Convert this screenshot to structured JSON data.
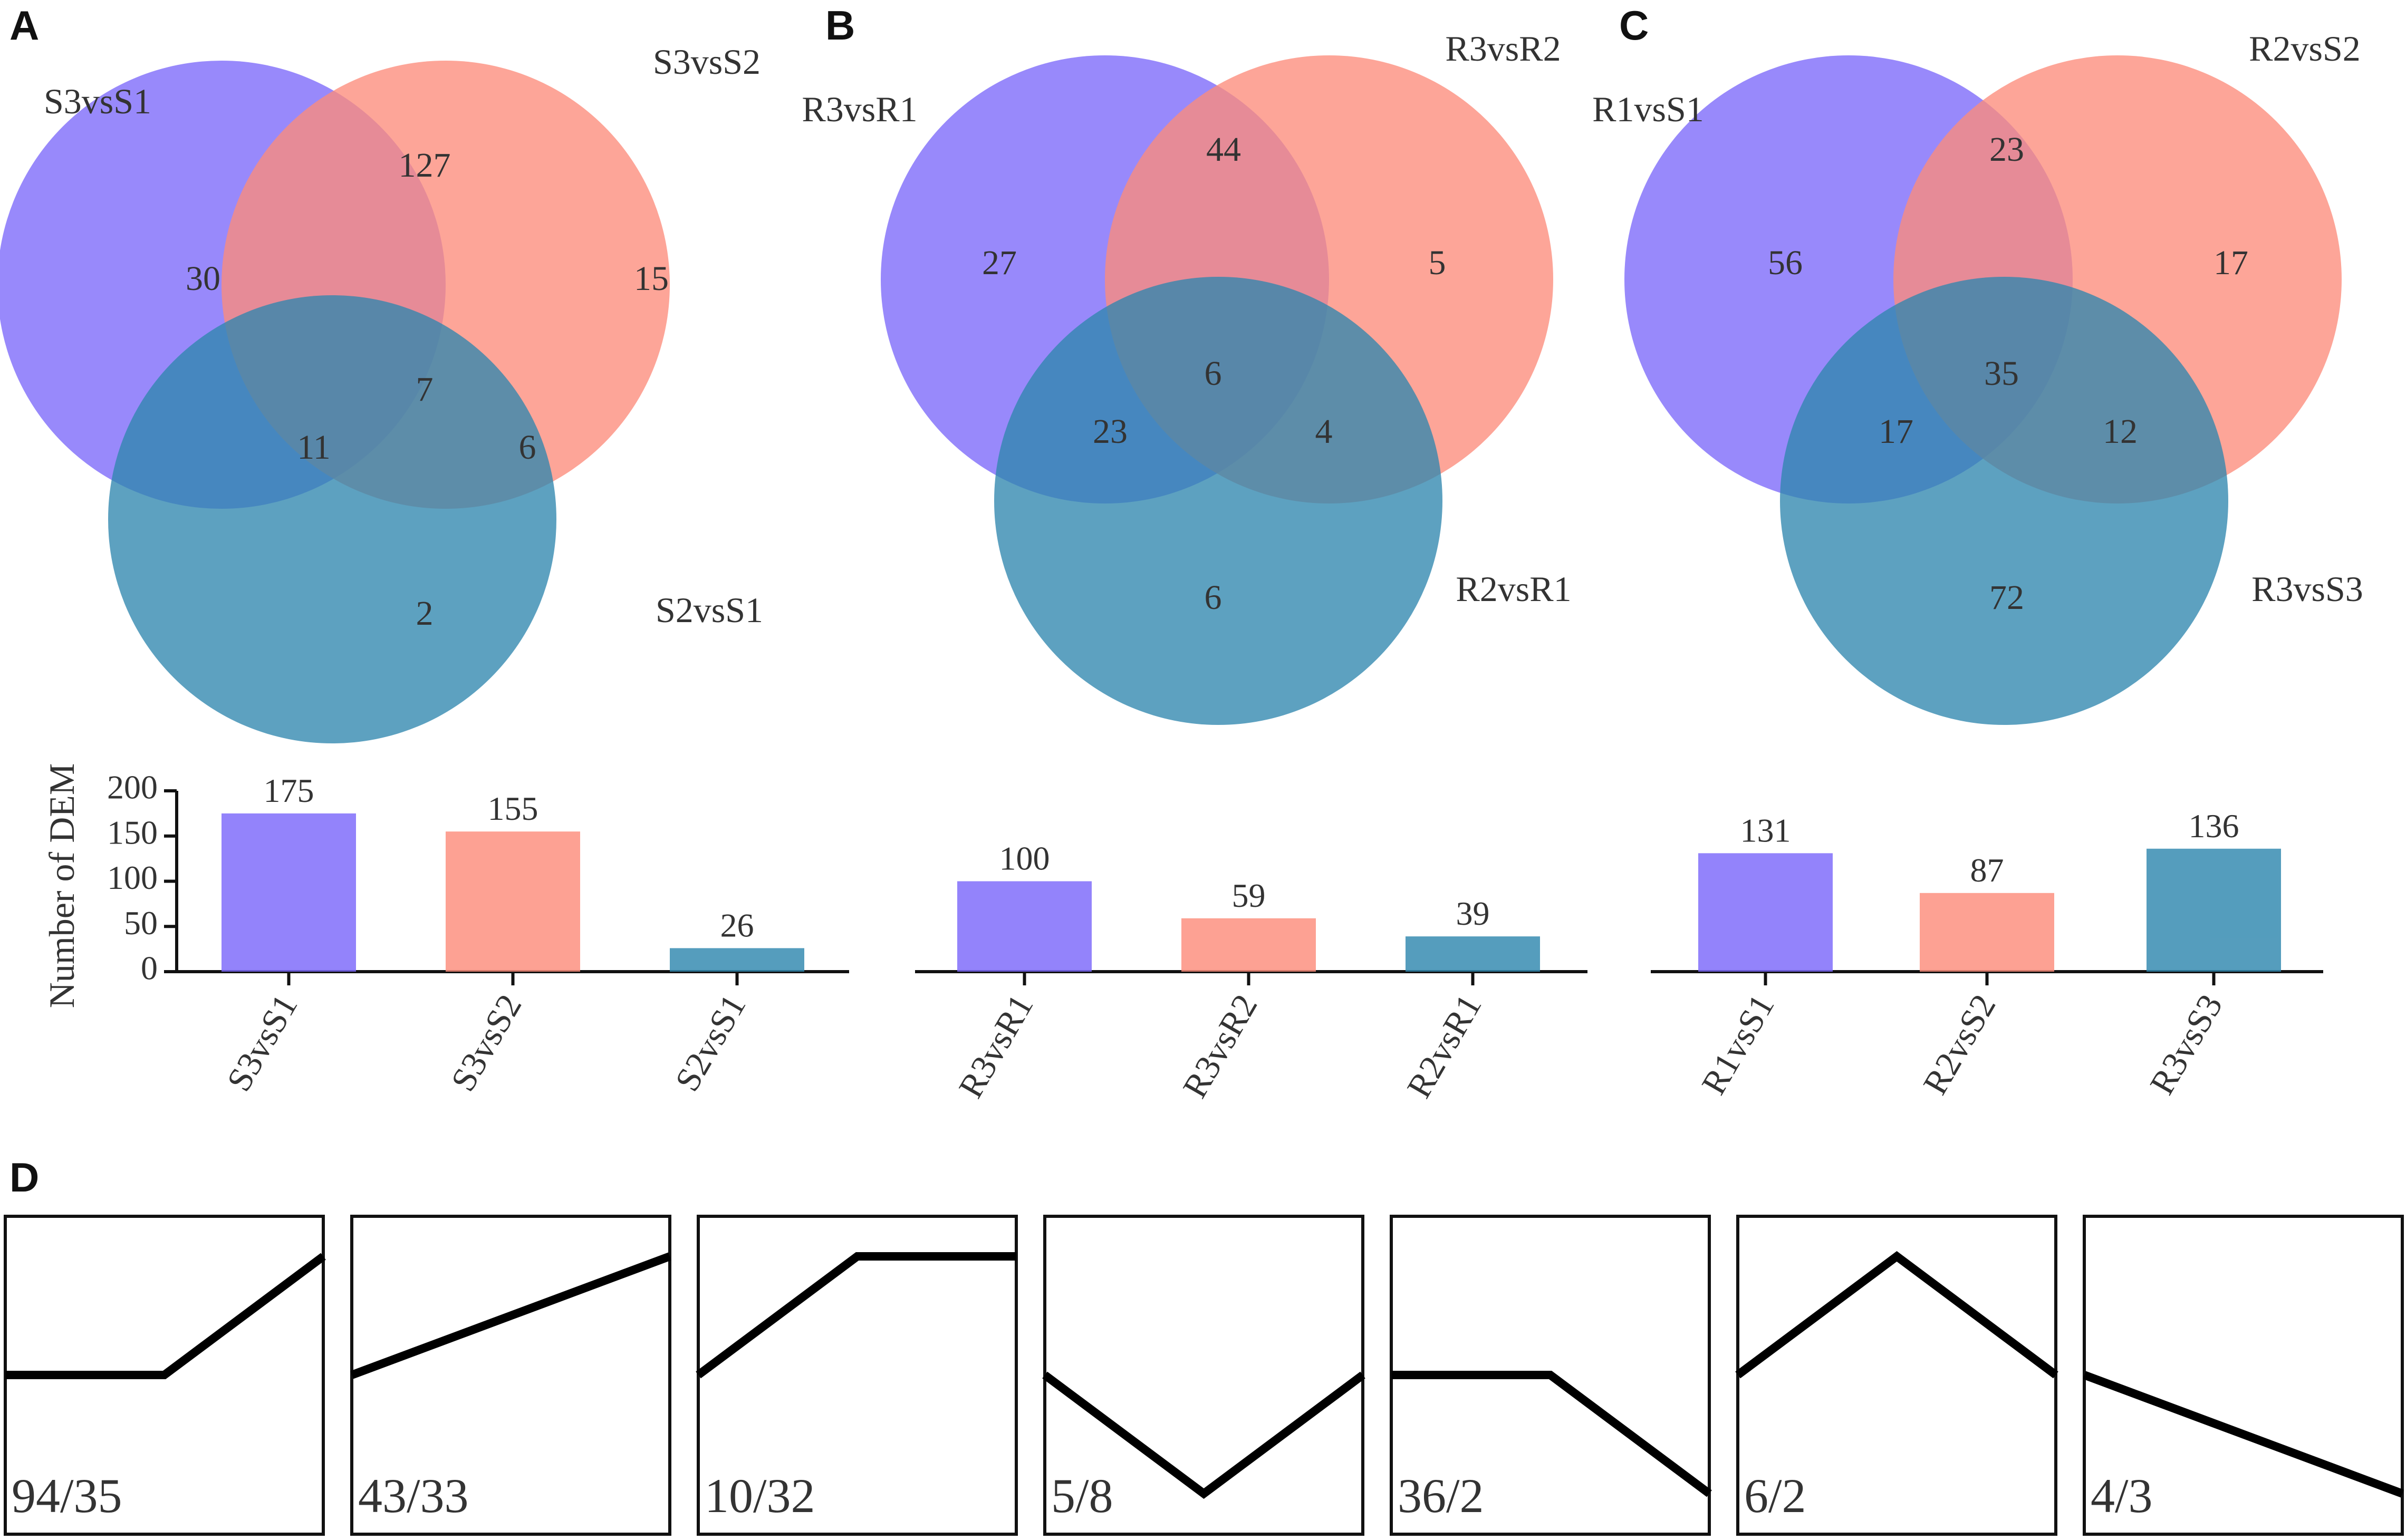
{
  "colors": {
    "purple": "#7B68FA",
    "salmon": "#FC8C7B",
    "teal": "#2F87AE",
    "text": "#333333",
    "axis": "#111111"
  },
  "chart_data": [
    {
      "panel": "A",
      "type": "venn",
      "sets": [
        "S3vsS1",
        "S3vsS2",
        "S2vsS1"
      ],
      "regions": [
        {
          "sets": [
            "S3vsS1"
          ],
          "value": 30
        },
        {
          "sets": [
            "S3vsS2"
          ],
          "value": 15
        },
        {
          "sets": [
            "S2vsS1"
          ],
          "value": 2
        },
        {
          "sets": [
            "S3vsS1",
            "S3vsS2"
          ],
          "value": 127
        },
        {
          "sets": [
            "S3vsS1",
            "S2vsS1"
          ],
          "value": 11
        },
        {
          "sets": [
            "S3vsS2",
            "S2vsS1"
          ],
          "value": 6
        },
        {
          "sets": [
            "S3vsS1",
            "S3vsS2",
            "S2vsS1"
          ],
          "value": 7
        }
      ],
      "bar": {
        "type": "bar",
        "ylabel": "Number of DEM",
        "ylim": [
          0,
          200
        ],
        "yticks": [
          0,
          50,
          100,
          150,
          200
        ],
        "categories": [
          "S3vsS1",
          "S3vsS2",
          "S2vsS1"
        ],
        "values": [
          175,
          155,
          26
        ]
      }
    },
    {
      "panel": "B",
      "type": "venn",
      "sets": [
        "R3vsR1",
        "R3vsR2",
        "R2vsR1"
      ],
      "regions": [
        {
          "sets": [
            "R3vsR1"
          ],
          "value": 27
        },
        {
          "sets": [
            "R3vsR2"
          ],
          "value": 5
        },
        {
          "sets": [
            "R2vsR1"
          ],
          "value": 6
        },
        {
          "sets": [
            "R3vsR1",
            "R3vsR2"
          ],
          "value": 44
        },
        {
          "sets": [
            "R3vsR1",
            "R2vsR1"
          ],
          "value": 23
        },
        {
          "sets": [
            "R3vsR2",
            "R2vsR1"
          ],
          "value": 4
        },
        {
          "sets": [
            "R3vsR1",
            "R3vsR2",
            "R2vsR1"
          ],
          "value": 6
        }
      ],
      "bar": {
        "type": "bar",
        "ylim": [
          0,
          200
        ],
        "categories": [
          "R3vsR1",
          "R3vsR2",
          "R2vsR1"
        ],
        "values": [
          100,
          59,
          39
        ]
      }
    },
    {
      "panel": "C",
      "type": "venn",
      "sets": [
        "R1vsS1",
        "R2vsS2",
        "R3vsS3"
      ],
      "regions": [
        {
          "sets": [
            "R1vsS1"
          ],
          "value": 56
        },
        {
          "sets": [
            "R2vsS2"
          ],
          "value": 17
        },
        {
          "sets": [
            "R3vsS3"
          ],
          "value": 72
        },
        {
          "sets": [
            "R1vsS1",
            "R2vsS2"
          ],
          "value": 23
        },
        {
          "sets": [
            "R1vsS1",
            "R3vsS3"
          ],
          "value": 17
        },
        {
          "sets": [
            "R2vsS2",
            "R3vsS3"
          ],
          "value": 12
        },
        {
          "sets": [
            "R1vsS1",
            "R2vsS2",
            "R3vsS3"
          ],
          "value": 35
        }
      ],
      "bar": {
        "type": "bar",
        "ylim": [
          0,
          200
        ],
        "categories": [
          "R1vsS1",
          "R2vsS2",
          "R3vsS3"
        ],
        "values": [
          131,
          87,
          136
        ]
      }
    },
    {
      "panel": "D",
      "type": "line",
      "profiles": [
        {
          "label": "94/35",
          "y": [
            0,
            0,
            1
          ]
        },
        {
          "label": "43/33",
          "y": [
            0,
            0.5,
            1
          ]
        },
        {
          "label": "10/32",
          "y": [
            0,
            1,
            1
          ]
        },
        {
          "label": "5/8",
          "y": [
            0,
            -1,
            0
          ]
        },
        {
          "label": "36/2",
          "y": [
            0,
            0,
            -1
          ]
        },
        {
          "label": "6/2",
          "y": [
            0,
            1,
            0
          ]
        },
        {
          "label": "4/3",
          "y": [
            0,
            -0.5,
            -1
          ]
        }
      ]
    }
  ]
}
